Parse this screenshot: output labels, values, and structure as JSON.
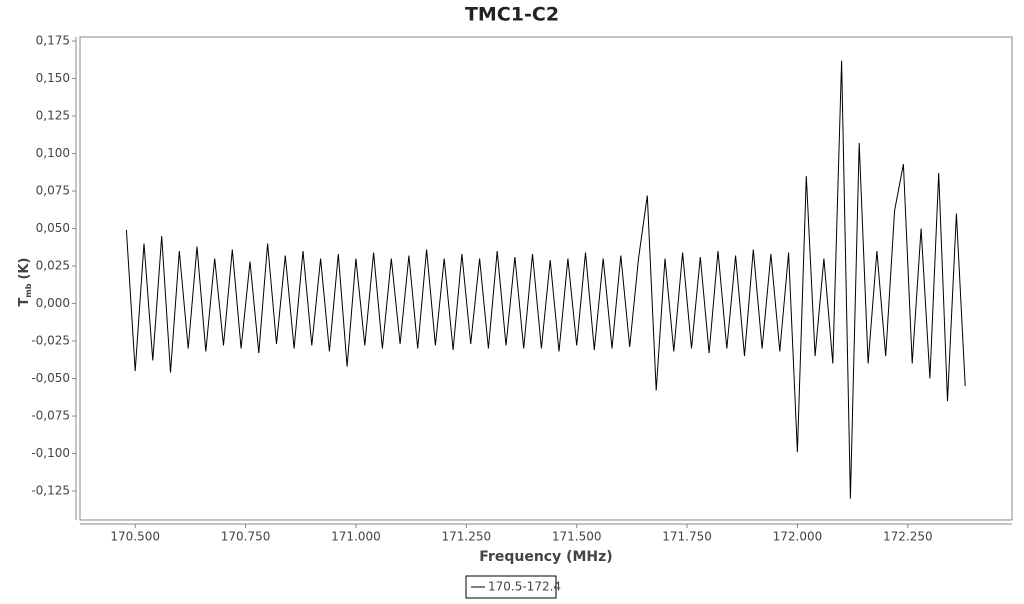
{
  "chart_data": {
    "type": "line",
    "title": "TMC1-C2",
    "x_label": "Frequency (MHz)",
    "y_label": "T",
    "y_label_sub": "mb",
    "y_label_unit": "(K)",
    "xlim": [
      170.375,
      172.486
    ],
    "ylim": [
      -0.1443,
      0.1777
    ],
    "xticks": [
      {
        "value": 170.5,
        "label": "170.500"
      },
      {
        "value": 170.75,
        "label": "170.750"
      },
      {
        "value": 171.0,
        "label": "171.000"
      },
      {
        "value": 171.25,
        "label": "171.250"
      },
      {
        "value": 171.5,
        "label": "171.500"
      },
      {
        "value": 171.75,
        "label": "171.750"
      },
      {
        "value": 172.0,
        "label": "172.000"
      },
      {
        "value": 172.25,
        "label": "172.250"
      }
    ],
    "yticks": [
      {
        "value": -0.125,
        "label": "-0,125"
      },
      {
        "value": -0.1,
        "label": "-0,100"
      },
      {
        "value": -0.075,
        "label": "-0,075"
      },
      {
        "value": -0.05,
        "label": "-0,050"
      },
      {
        "value": -0.025,
        "label": "-0,025"
      },
      {
        "value": 0,
        "label": "0,000"
      },
      {
        "value": 0.025,
        "label": "0,025"
      },
      {
        "value": 0.05,
        "label": "0,050"
      },
      {
        "value": 0.075,
        "label": "0,075"
      },
      {
        "value": 0.1,
        "label": "0,100"
      },
      {
        "value": 0.125,
        "label": "0,125"
      },
      {
        "value": 0.15,
        "label": "0,150"
      },
      {
        "value": 0.175,
        "label": "0,175"
      }
    ],
    "x": [
      170.48,
      170.5,
      170.52,
      170.54,
      170.56,
      170.58,
      170.6,
      170.62,
      170.64,
      170.66,
      170.68,
      170.7,
      170.72,
      170.74,
      170.76,
      170.78,
      170.8,
      170.82,
      170.84,
      170.86,
      170.88,
      170.9,
      170.92,
      170.94,
      170.96,
      170.98,
      171.0,
      171.02,
      171.04,
      171.06,
      171.08,
      171.1,
      171.12,
      171.14,
      171.16,
      171.18,
      171.2,
      171.22,
      171.24,
      171.26,
      171.28,
      171.3,
      171.32,
      171.34,
      171.36,
      171.38,
      171.4,
      171.42,
      171.44,
      171.46,
      171.48,
      171.5,
      171.52,
      171.54,
      171.56,
      171.58,
      171.6,
      171.62,
      171.64,
      171.66,
      171.68,
      171.7,
      171.72,
      171.74,
      171.76,
      171.78,
      171.8,
      171.82,
      171.84,
      171.86,
      171.88,
      171.9,
      171.92,
      171.94,
      171.96,
      171.98,
      172.0,
      172.02,
      172.04,
      172.06,
      172.08,
      172.1,
      172.12,
      172.14,
      172.16,
      172.18,
      172.2,
      172.22,
      172.24,
      172.26,
      172.28,
      172.3,
      172.32,
      172.34,
      172.36,
      172.38
    ],
    "series": [
      {
        "name": "170.5-172.4",
        "color": "#000000",
        "values": [
          0.049,
          -0.045,
          0.04,
          -0.038,
          0.045,
          -0.046,
          0.035,
          -0.03,
          0.038,
          -0.032,
          0.03,
          -0.028,
          0.036,
          -0.03,
          0.028,
          -0.033,
          0.04,
          -0.027,
          0.032,
          -0.03,
          0.035,
          -0.028,
          0.03,
          -0.032,
          0.033,
          -0.042,
          0.03,
          -0.028,
          0.034,
          -0.03,
          0.03,
          -0.027,
          0.032,
          -0.03,
          0.036,
          -0.028,
          0.03,
          -0.031,
          0.033,
          -0.027,
          0.03,
          -0.03,
          0.035,
          -0.028,
          0.031,
          -0.03,
          0.033,
          -0.03,
          0.029,
          -0.032,
          0.03,
          -0.028,
          0.034,
          -0.031,
          0.03,
          -0.03,
          0.032,
          -0.029,
          0.03,
          0.072,
          -0.058,
          0.03,
          -0.032,
          0.034,
          -0.03,
          0.031,
          -0.033,
          0.035,
          -0.03,
          0.032,
          -0.035,
          0.036,
          -0.03,
          0.033,
          -0.032,
          0.034,
          -0.099,
          0.085,
          -0.035,
          0.03,
          -0.04,
          0.162,
          -0.13,
          0.107,
          -0.04,
          0.035,
          -0.035,
          0.062,
          0.093,
          -0.04,
          0.05,
          -0.05,
          0.087,
          -0.065,
          0.06,
          -0.055
        ]
      }
    ]
  }
}
